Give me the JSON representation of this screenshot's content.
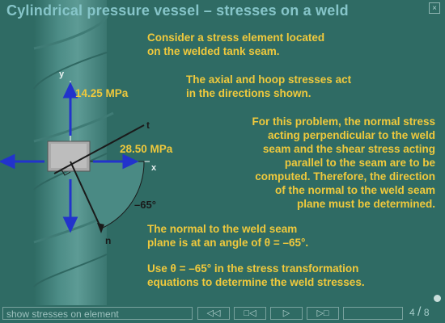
{
  "title": "Cylindrical pressure vessel – stresses on a weld",
  "close_icon": "×",
  "paragraphs": {
    "p1": [
      "Consider a stress element located",
      "on the welded tank seam."
    ],
    "p2": [
      "The axial and hoop stresses act",
      "in the directions shown."
    ],
    "p3": [
      "For this problem, the normal stress",
      "acting perpendicular to the weld",
      "seam and the shear stress acting",
      "parallel to the seam are to be",
      "computed.  Therefore, the direction",
      "of the normal to the weld seam",
      "plane must be determined."
    ],
    "p4": [
      "The normal to the weld seam",
      "plane is at an angle of θ = –65°."
    ],
    "p5": [
      "Use θ = –65° in the stress transformation",
      "equations to determine the weld stresses."
    ]
  },
  "diagram": {
    "axial_stress": "14.25 MPa",
    "hoop_stress": "28.50 MPa",
    "angle_label": "–65°",
    "axis_y": "y",
    "axis_x": "x",
    "axis_t": "t",
    "axis_n": "n",
    "angle_deg": -65
  },
  "bottom": {
    "status": "show stresses on element",
    "nav": [
      "◁◁",
      "□◁",
      "▷",
      "▷□"
    ],
    "page_current": "4",
    "page_sep": "/",
    "page_total": "8"
  },
  "colors": {
    "background": "#2f6b64",
    "text": "#f0c93c",
    "arrow": "#2233cc",
    "wedge": "#4a8a84"
  }
}
